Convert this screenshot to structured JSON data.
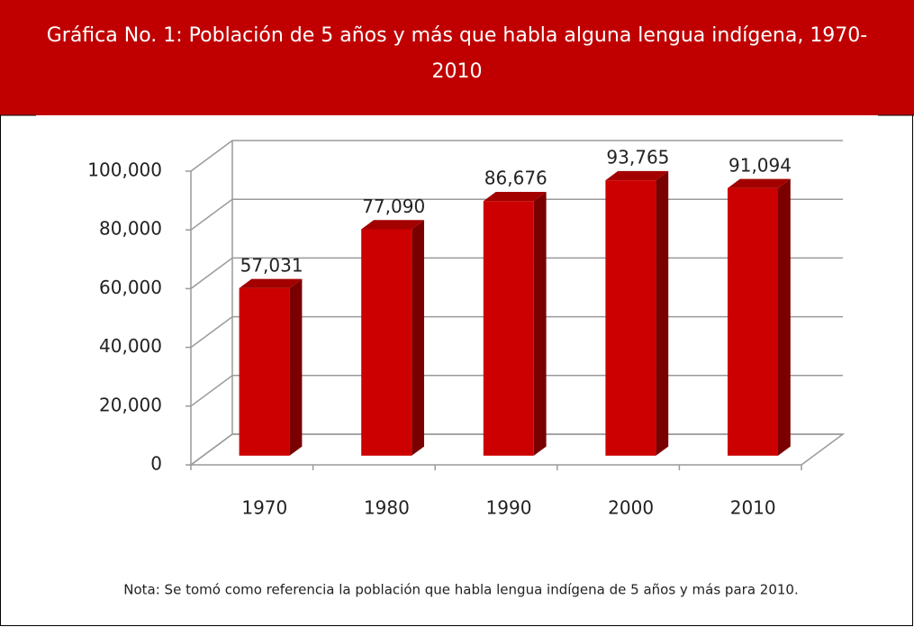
{
  "chart_data": {
    "type": "bar3d",
    "title": "Gráfica No. 1: Población de 5 años y más que habla alguna lengua indígena, 1970-2010",
    "categories": [
      "1970",
      "1980",
      "1990",
      "2000",
      "2010"
    ],
    "values": [
      57031,
      77090,
      86676,
      93765,
      91094
    ],
    "value_labels": [
      "57,031",
      "77,090",
      "86,676",
      "93,765",
      "91,094"
    ],
    "color": "#cc0000",
    "ylim": [
      0,
      100000
    ],
    "yticks": [
      0,
      {
        "value": 20000,
        "label": "20,000"
      },
      {
        "value": 40000,
        "label": "40,000"
      },
      {
        "value": 60000,
        "label": "60,000"
      },
      {
        "value": 80000,
        "label": "80,000"
      },
      {
        "value": 100000,
        "label": "100,000"
      }
    ],
    "grid": true,
    "note": "Nota: Se tomó como referencia la población que habla lengua indígena de  5 años y más para 2010."
  }
}
